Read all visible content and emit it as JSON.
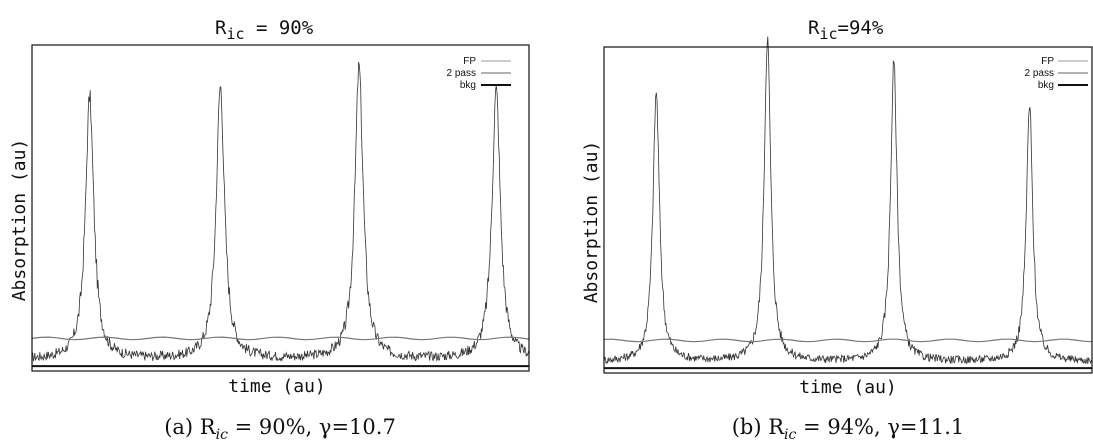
{
  "chart_data": [
    {
      "type": "line",
      "title_main": "R",
      "title_sub": "ic",
      "title_rest": " = 90%",
      "xlabel": "time (au)",
      "ylabel": "Absorption (au)",
      "caption_prefix": "(a) R",
      "caption_sub": "ic",
      "caption_rest": " = 90%, γ=10.7",
      "legend": [
        "FP",
        "2 pass",
        "bkg"
      ],
      "legend_position": "top-right",
      "grid": false,
      "xlim": [
        0,
        1
      ],
      "ylim": [
        0,
        1
      ],
      "peaks": [
        {
          "x": 0.116,
          "height": 0.8
        },
        {
          "x": 0.379,
          "height": 0.83
        },
        {
          "x": 0.658,
          "height": 0.89
        },
        {
          "x": 0.934,
          "height": 0.82
        }
      ],
      "peak_width": 0.01,
      "noise_level": 0.06,
      "series": [
        {
          "name": "FP",
          "baseline": 0.1
        },
        {
          "name": "2 pass",
          "baseline": 0.1
        },
        {
          "name": "bkg",
          "baseline": 0.015
        }
      ]
    },
    {
      "type": "line",
      "title_main": "R",
      "title_sub": "ic",
      "title_rest": "=94%",
      "xlabel": "time (au)",
      "ylabel": "Absorption (au)",
      "caption_prefix": "(b) R",
      "caption_sub": "ic",
      "caption_rest": " = 94%, γ=11.1",
      "legend": [
        "FP",
        "2 pass",
        "bkg"
      ],
      "legend_position": "top-right",
      "grid": false,
      "xlim": [
        0,
        1
      ],
      "ylim": [
        0,
        1
      ],
      "peaks": [
        {
          "x": 0.107,
          "height": 0.82
        },
        {
          "x": 0.335,
          "height": 0.99
        },
        {
          "x": 0.594,
          "height": 0.91
        },
        {
          "x": 0.872,
          "height": 0.78
        }
      ],
      "peak_width": 0.008,
      "noise_level": 0.05,
      "series": [
        {
          "name": "FP",
          "baseline": 0.1
        },
        {
          "name": "2 pass",
          "baseline": 0.1
        },
        {
          "name": "bkg",
          "baseline": 0.015
        }
      ]
    }
  ]
}
